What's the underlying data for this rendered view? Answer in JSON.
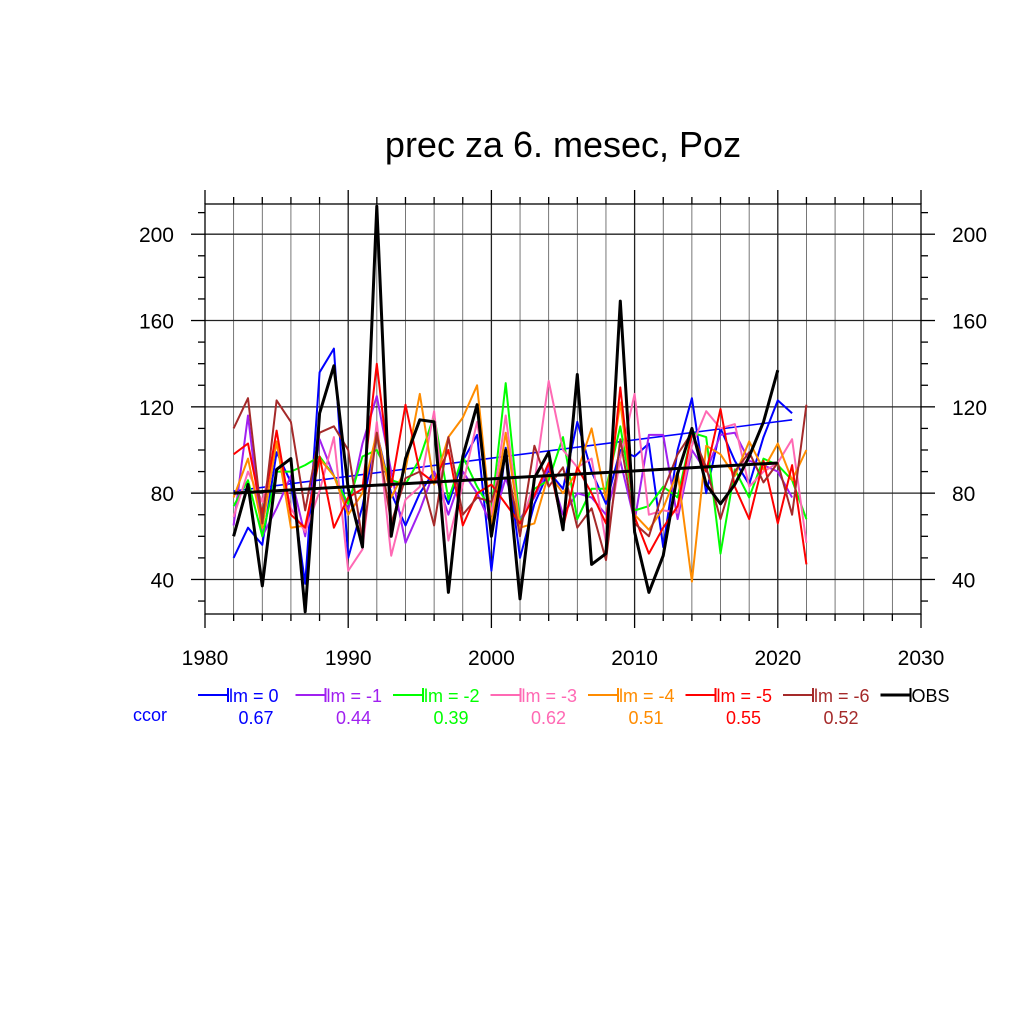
{
  "chart_data": {
    "type": "line",
    "title": "prec za 6. mesec, Poz",
    "xlabel": "",
    "ylabel": "",
    "xlim": [
      1980,
      2030
    ],
    "ylim": [
      24,
      214
    ],
    "x_ticks": [
      1980,
      1990,
      2000,
      2010,
      2020,
      2030
    ],
    "y_ticks": [
      40,
      80,
      120,
      160,
      200
    ],
    "grid": true,
    "legend_position": "bottom",
    "ccor_label": "ccor",
    "x": [
      1982,
      1983,
      1984,
      1985,
      1986,
      1987,
      1988,
      1989,
      1990,
      1991,
      1992,
      1993,
      1994,
      1995,
      1996,
      1997,
      1998,
      1999,
      2000,
      2001,
      2002,
      2003,
      2004,
      2005,
      2006,
      2007,
      2008,
      2009,
      2010,
      2011,
      2012,
      2013,
      2014,
      2015,
      2016,
      2017,
      2018,
      2019,
      2020,
      2021,
      2022
    ],
    "series": [
      {
        "name": "lm = 0",
        "ccor": "0.67",
        "color": "#0000ff",
        "trend": [
          81,
          114
        ],
        "values": [
          50,
          64,
          56,
          99,
          85,
          38,
          136,
          147,
          50,
          74,
          108,
          80,
          65,
          80,
          90,
          75,
          95,
          107,
          44,
          101,
          50,
          75,
          90,
          82,
          113,
          90,
          75,
          100,
          97,
          103,
          55,
          100,
          124,
          80,
          110,
          95,
          84,
          106,
          123,
          117,
          null
        ]
      },
      {
        "name": "lm = -1",
        "ccor": "0.44",
        "color": "#a020f0",
        "trend": null,
        "values": [
          65,
          116,
          60,
          73,
          88,
          60,
          105,
          88,
          72,
          103,
          125,
          90,
          57,
          72,
          90,
          70,
          90,
          80,
          65,
          87,
          68,
          78,
          92,
          70,
          80,
          78,
          70,
          95,
          67,
          107,
          107,
          68,
          100,
          90,
          107,
          108,
          95,
          93,
          90,
          78,
          null
        ]
      },
      {
        "name": "lm = -2",
        "ccor": "0.39",
        "color": "#00ff00",
        "trend": null,
        "values": [
          74,
          86,
          60,
          90,
          90,
          93,
          97,
          88,
          75,
          97,
          100,
          86,
          84,
          96,
          116,
          77,
          97,
          83,
          72,
          131,
          66,
          82,
          86,
          106,
          68,
          82,
          82,
          111,
          72,
          74,
          83,
          78,
          108,
          106,
          52,
          91,
          78,
          96,
          93,
          86,
          68
        ]
      },
      {
        "name": "lm = -3",
        "ccor": "0.62",
        "color": "#ff69b4",
        "trend": null,
        "values": [
          69,
          90,
          76,
          103,
          73,
          62,
          81,
          106,
          44,
          54,
          113,
          51,
          77,
          83,
          118,
          58,
          84,
          113,
          70,
          116,
          64,
          85,
          132,
          100,
          92,
          96,
          57,
          96,
          126,
          70,
          72,
          71,
          102,
          118,
          110,
          112,
          83,
          90,
          94,
          105,
          57
        ]
      },
      {
        "name": "lm = -4",
        "ccor": "0.51",
        "color": "#ff8c00",
        "trend": null,
        "values": [
          78,
          96,
          64,
          104,
          64,
          65,
          96,
          88,
          70,
          80,
          108,
          78,
          91,
          126,
          84,
          106,
          115,
          130,
          65,
          108,
          64,
          66,
          89,
          80,
          90,
          110,
          77,
          122,
          70,
          63,
          73,
          90,
          39,
          102,
          98,
          88,
          104,
          91,
          103,
          86,
          100
        ]
      },
      {
        "name": "lm = -5",
        "ccor": "0.55",
        "color": "#ff0000",
        "trend": null,
        "values": [
          98,
          103,
          70,
          109,
          70,
          64,
          97,
          64,
          78,
          82,
          140,
          83,
          121,
          90,
          85,
          100,
          65,
          80,
          84,
          75,
          66,
          79,
          94,
          64,
          92,
          80,
          66,
          129,
          69,
          52,
          64,
          74,
          108,
          90,
          119,
          83,
          68,
          95,
          66,
          93,
          47
        ]
      },
      {
        "name": "lm = -6",
        "ccor": "0.52",
        "color": "#a52a2a",
        "trend": null,
        "values": [
          110,
          124,
          66,
          123,
          113,
          72,
          108,
          111,
          100,
          58,
          108,
          66,
          87,
          90,
          65,
          106,
          70,
          78,
          76,
          97,
          60,
          102,
          83,
          92,
          64,
          73,
          49,
          105,
          66,
          60,
          81,
          98,
          108,
          92,
          68,
          90,
          99,
          85,
          94,
          70,
          121
        ]
      },
      {
        "name": "OBS",
        "ccor": null,
        "color": "#000000",
        "trend": [
          80,
          94
        ],
        "values": [
          60,
          84,
          37,
          91,
          96,
          25,
          117,
          139,
          82,
          55,
          213,
          60,
          96,
          114,
          113,
          34,
          97,
          121,
          60,
          100,
          31,
          87,
          99,
          63,
          135,
          47,
          52,
          169,
          62,
          34,
          51,
          89,
          110,
          84,
          75,
          84,
          97,
          113,
          137,
          null,
          null
        ]
      }
    ]
  }
}
